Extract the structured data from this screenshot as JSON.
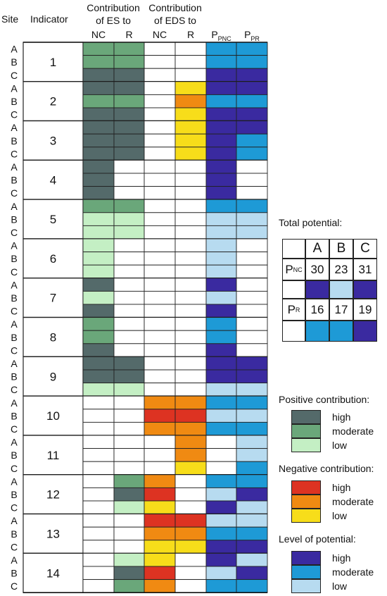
{
  "headers": {
    "site": "Site",
    "indicator": "Indicator",
    "es_group_line1": "Contribution",
    "es_group_line2": "of ES to",
    "eds_group_line1": "Contribution",
    "eds_group_line2": "of EDS to",
    "nc": "NC",
    "r": "R",
    "p_pnc_main": "P",
    "p_pnc_sub": "PNC",
    "p_pr_main": "P",
    "p_pr_sub": "PR"
  },
  "colors": {
    "W": "#ffffff",
    "DG": "#546a6a",
    "MG": "#6aa77a",
    "LG": "#c4efc4",
    "RD": "#dd3322",
    "OR": "#f08a12",
    "YE": "#f7dd1a",
    "DB": "#3a2aa0",
    "MB": "#1e9ad6",
    "LB": "#b7dbf0"
  },
  "chart_data": {
    "type": "table",
    "sites": [
      "A",
      "B",
      "C"
    ],
    "columns": [
      "ES to NC",
      "ES to R",
      "EDS to NC",
      "EDS to R",
      "P_PNC",
      "P_PR"
    ],
    "indicators": [
      {
        "label": "1",
        "rows": [
          [
            "MG",
            "MG",
            "W",
            "W",
            "MB",
            "MB"
          ],
          [
            "MG",
            "MG",
            "W",
            "W",
            "MB",
            "MB"
          ],
          [
            "DG",
            "DG",
            "W",
            "W",
            "DB",
            "DB"
          ]
        ]
      },
      {
        "label": "2",
        "rows": [
          [
            "DG",
            "DG",
            "W",
            "YE",
            "DB",
            "DB"
          ],
          [
            "MG",
            "MG",
            "W",
            "OR",
            "MB",
            "MB"
          ],
          [
            "DG",
            "DG",
            "W",
            "YE",
            "DB",
            "DB"
          ]
        ]
      },
      {
        "label": "3",
        "rows": [
          [
            "DG",
            "DG",
            "W",
            "YE",
            "DB",
            "DB"
          ],
          [
            "DG",
            "DG",
            "W",
            "YE",
            "DB",
            "MB"
          ],
          [
            "DG",
            "DG",
            "W",
            "YE",
            "DB",
            "MB"
          ]
        ]
      },
      {
        "label": "4",
        "rows": [
          [
            "DG",
            "W",
            "W",
            "W",
            "DB",
            "W"
          ],
          [
            "DG",
            "W",
            "W",
            "W",
            "DB",
            "W"
          ],
          [
            "DG",
            "W",
            "W",
            "W",
            "DB",
            "W"
          ]
        ]
      },
      {
        "label": "5",
        "rows": [
          [
            "MG",
            "MG",
            "W",
            "W",
            "MB",
            "MB"
          ],
          [
            "LG",
            "LG",
            "W",
            "W",
            "LB",
            "LB"
          ],
          [
            "LG",
            "LG",
            "W",
            "W",
            "LB",
            "LB"
          ]
        ]
      },
      {
        "label": "6",
        "rows": [
          [
            "LG",
            "W",
            "W",
            "W",
            "LB",
            "W"
          ],
          [
            "LG",
            "W",
            "W",
            "W",
            "LB",
            "W"
          ],
          [
            "LG",
            "W",
            "W",
            "W",
            "LB",
            "W"
          ]
        ]
      },
      {
        "label": "7",
        "rows": [
          [
            "DG",
            "W",
            "W",
            "W",
            "DB",
            "W"
          ],
          [
            "LG",
            "W",
            "W",
            "W",
            "LB",
            "W"
          ],
          [
            "DG",
            "W",
            "W",
            "W",
            "DB",
            "W"
          ]
        ]
      },
      {
        "label": "8",
        "rows": [
          [
            "MG",
            "W",
            "W",
            "W",
            "MB",
            "W"
          ],
          [
            "MG",
            "W",
            "W",
            "W",
            "MB",
            "W"
          ],
          [
            "DG",
            "W",
            "W",
            "W",
            "DB",
            "W"
          ]
        ]
      },
      {
        "label": "9",
        "rows": [
          [
            "DG",
            "DG",
            "W",
            "W",
            "DB",
            "DB"
          ],
          [
            "DG",
            "DG",
            "W",
            "W",
            "DB",
            "DB"
          ],
          [
            "LG",
            "LG",
            "W",
            "W",
            "LB",
            "LB"
          ]
        ]
      },
      {
        "label": "10",
        "rows": [
          [
            "W",
            "W",
            "OR",
            "OR",
            "MB",
            "MB"
          ],
          [
            "W",
            "W",
            "RD",
            "RD",
            "LB",
            "LB"
          ],
          [
            "W",
            "W",
            "OR",
            "OR",
            "MB",
            "MB"
          ]
        ]
      },
      {
        "label": "11",
        "rows": [
          [
            "W",
            "W",
            "W",
            "OR",
            "W",
            "LB"
          ],
          [
            "W",
            "W",
            "W",
            "OR",
            "W",
            "LB"
          ],
          [
            "W",
            "W",
            "W",
            "YE",
            "W",
            "MB"
          ]
        ]
      },
      {
        "label": "12",
        "rows": [
          [
            "W",
            "MG",
            "OR",
            "W",
            "MB",
            "MB"
          ],
          [
            "W",
            "DG",
            "RD",
            "W",
            "LB",
            "DB"
          ],
          [
            "W",
            "LG",
            "YE",
            "W",
            "DB",
            "LB"
          ]
        ]
      },
      {
        "label": "13",
        "rows": [
          [
            "W",
            "W",
            "RD",
            "RD",
            "LB",
            "LB"
          ],
          [
            "W",
            "W",
            "OR",
            "OR",
            "MB",
            "MB"
          ],
          [
            "W",
            "W",
            "YE",
            "YE",
            "DB",
            "DB"
          ]
        ]
      },
      {
        "label": "14",
        "rows": [
          [
            "W",
            "LG",
            "YE",
            "W",
            "DB",
            "LB"
          ],
          [
            "W",
            "DG",
            "RD",
            "W",
            "LB",
            "DB"
          ],
          [
            "W",
            "MG",
            "OR",
            "W",
            "MB",
            "MB"
          ]
        ]
      }
    ],
    "total_potential": {
      "title": "Total potential:",
      "sites": [
        "A",
        "B",
        "C"
      ],
      "pnc_label": "P",
      "pnc_sub": "NC",
      "pnc_values": [
        "30",
        "23",
        "31"
      ],
      "pnc_colors": [
        "DB",
        "LB",
        "DB"
      ],
      "pr_label": "P",
      "pr_sub": "R",
      "pr_values": [
        "16",
        "17",
        "19"
      ],
      "pr_colors": [
        "MB",
        "MB",
        "DB"
      ]
    }
  },
  "legend": {
    "positive": {
      "title": "Positive contribution:",
      "items": [
        {
          "label": "high",
          "color": "DG"
        },
        {
          "label": "moderate",
          "color": "MG"
        },
        {
          "label": "low",
          "color": "LG"
        }
      ]
    },
    "negative": {
      "title": "Negative contribution:",
      "items": [
        {
          "label": "high",
          "color": "RD"
        },
        {
          "label": "moderate",
          "color": "OR"
        },
        {
          "label": "low",
          "color": "YE"
        }
      ]
    },
    "potential": {
      "title": "Level of potential:",
      "items": [
        {
          "label": "high",
          "color": "DB"
        },
        {
          "label": "moderate",
          "color": "MB"
        },
        {
          "label": "low",
          "color": "LB"
        }
      ]
    }
  }
}
